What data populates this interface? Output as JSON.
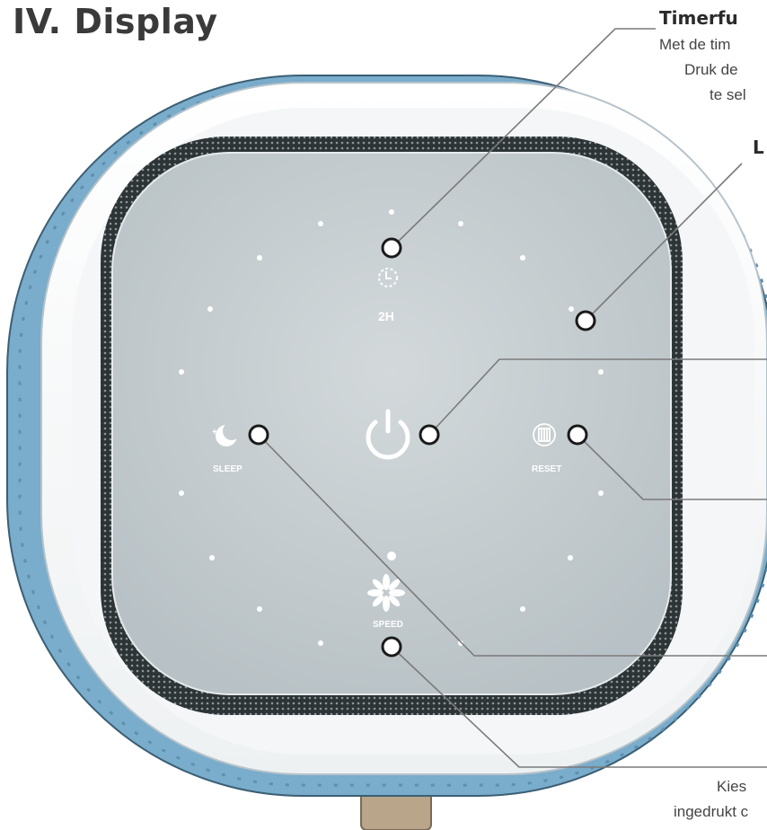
{
  "page": {
    "title": "IV. Display"
  },
  "callouts": {
    "timer_heading": "Timerfu",
    "timer_line1": "Met de tim",
    "timer_line2": "Druk de",
    "timer_line3": "te sel",
    "light_heading": "L",
    "speed_line1": "Kies",
    "speed_line2": "ingedrukt c"
  },
  "panel": {
    "timer_value": "2H",
    "sleep_label": "SLEEP",
    "reset_label": "RESET",
    "speed_label": "SPEED"
  },
  "colors": {
    "shell_blue": "#7aaccb",
    "panel": "#c7ced1",
    "ring": "#ffffff",
    "pointer_line": "#7a7a7a"
  },
  "icons": {
    "timer": "timer-icon",
    "power": "power-icon",
    "sleep": "sleep-moon-icon",
    "reset": "filter-reset-icon",
    "speed": "fan-speed-icon"
  }
}
